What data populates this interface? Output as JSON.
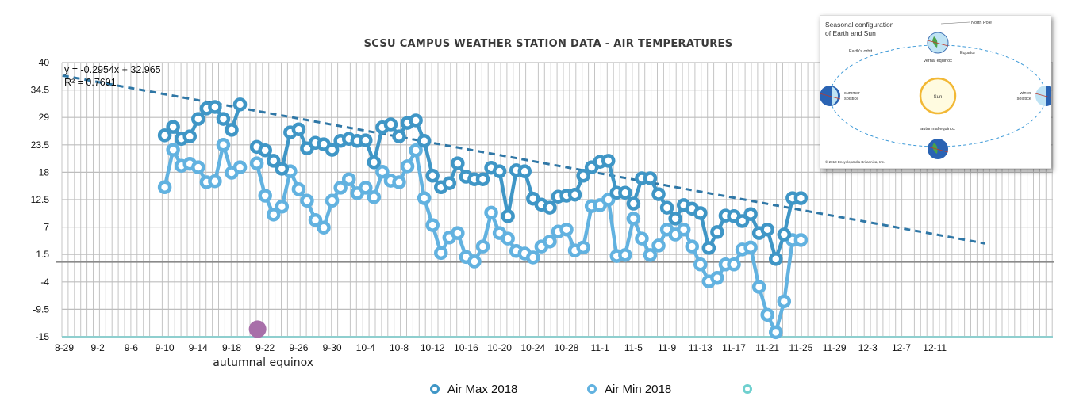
{
  "chart_data": {
    "type": "line",
    "title": "SCSU CAMPUS WEATHER STATION DATA - AIR TEMPERATURES",
    "xlabel": "",
    "ylabel": "",
    "ylim": [
      -15,
      40
    ],
    "yticks": [
      "40",
      "34.5",
      "29",
      "23.5",
      "18",
      "12.5",
      "7",
      "1.5",
      "-4",
      "-9.5",
      "-15"
    ],
    "ytick_values": [
      40,
      34.5,
      29,
      23.5,
      18,
      12.5,
      7,
      1.5,
      -4,
      -9.5,
      -15
    ],
    "x_start_date": "8-29",
    "x_range_days": [
      0,
      110
    ],
    "xticks": [
      "8-29",
      "9-2",
      "9-6",
      "9-10",
      "9-14",
      "9-18",
      "9-22",
      "9-26",
      "9-30",
      "10-4",
      "10-8",
      "10-12",
      "10-16",
      "10-20",
      "10-24",
      "10-28",
      "11-1",
      "11-5",
      "11-9",
      "11-13",
      "11-17",
      "11-21",
      "11-25",
      "11-29",
      "12-3",
      "12-7",
      "12-11"
    ],
    "xtick_days": [
      0,
      4,
      8,
      12,
      16,
      20,
      24,
      28,
      32,
      36,
      40,
      44,
      48,
      52,
      56,
      60,
      64,
      68,
      72,
      76,
      80,
      84,
      88,
      92,
      96,
      100,
      104
    ],
    "grid": true,
    "legend_position": "bottom",
    "series": [
      {
        "name": "Air Max 2018",
        "color": "#3f96c6",
        "days": [
          12,
          13,
          14,
          15,
          16,
          17,
          18,
          19,
          20,
          21,
          23,
          24,
          25,
          26,
          27,
          28,
          29,
          30,
          31,
          32,
          33,
          34,
          35,
          36,
          37,
          38,
          39,
          40,
          41,
          42,
          43,
          44,
          45,
          46,
          47,
          48,
          49,
          50,
          51,
          52,
          53,
          54,
          55,
          56,
          57,
          58,
          59,
          60,
          61,
          62,
          63,
          64,
          65,
          66,
          67,
          68,
          69,
          70,
          71,
          72,
          73,
          74,
          75,
          76,
          77,
          78,
          79,
          80,
          81,
          82,
          83,
          84,
          85,
          86,
          87,
          88
        ],
        "values": [
          25.4,
          27.1,
          24.7,
          25.2,
          28.7,
          30.8,
          31.1,
          28.7,
          26.5,
          31.6,
          23.1,
          22.4,
          20.3,
          18.7,
          26.0,
          26.6,
          22.8,
          23.9,
          23.6,
          22.5,
          24.3,
          24.7,
          24.3,
          24.4,
          20.0,
          27.0,
          27.6,
          25.2,
          27.9,
          28.4,
          24.3,
          17.3,
          15.0,
          15.8,
          19.8,
          17.1,
          16.6,
          16.6,
          18.9,
          18.2,
          9.2,
          18.4,
          18.2,
          12.7,
          11.5,
          10.9,
          13.1,
          13.3,
          13.5,
          17.3,
          19.0,
          20.1,
          20.3,
          13.9,
          13.9,
          11.7,
          16.8,
          16.8,
          13.6,
          10.9,
          8.7,
          11.4,
          10.7,
          9.8,
          2.8,
          6.0,
          9.3,
          9.2,
          8.2,
          9.6,
          5.8,
          6.5,
          0.6,
          5.5,
          12.8,
          12.8
        ]
      },
      {
        "name": "Air Min 2018",
        "color": "#62b2e0",
        "days": [
          12,
          13,
          14,
          15,
          16,
          17,
          18,
          19,
          20,
          21,
          23,
          24,
          25,
          26,
          27,
          28,
          29,
          30,
          31,
          32,
          33,
          34,
          35,
          36,
          37,
          38,
          39,
          40,
          41,
          42,
          43,
          44,
          45,
          46,
          47,
          48,
          49,
          50,
          51,
          52,
          53,
          54,
          55,
          56,
          57,
          58,
          59,
          60,
          61,
          62,
          63,
          64,
          65,
          66,
          67,
          68,
          69,
          70,
          71,
          72,
          73,
          74,
          75,
          76,
          77,
          78,
          79,
          80,
          81,
          82,
          83,
          84,
          85,
          86,
          87,
          88
        ],
        "values": [
          15.0,
          22.5,
          19.3,
          19.7,
          19.0,
          16.0,
          16.2,
          23.5,
          17.9,
          19.0,
          19.8,
          13.3,
          9.5,
          11.1,
          18.2,
          14.6,
          12.3,
          8.4,
          6.9,
          12.3,
          14.9,
          16.6,
          13.8,
          14.9,
          13.0,
          18.1,
          16.3,
          16.0,
          19.2,
          22.4,
          12.8,
          7.4,
          1.8,
          4.9,
          5.8,
          1.0,
          0.1,
          3.1,
          9.9,
          5.8,
          4.7,
          2.2,
          1.7,
          0.9,
          3.1,
          4.1,
          6.1,
          6.5,
          2.3,
          2.9,
          11.2,
          11.4,
          12.5,
          1.2,
          1.4,
          8.7,
          4.7,
          1.4,
          3.3,
          6.5,
          5.5,
          6.5,
          3.1,
          -0.5,
          -3.9,
          -3.2,
          -0.5,
          -0.5,
          2.5,
          2.9,
          -5.0,
          -10.6,
          -14.1,
          -7.9,
          4.4,
          4.4
        ]
      },
      {
        "name": "",
        "color": "#6fd0cf",
        "days": [],
        "values": []
      }
    ],
    "trendline": {
      "series": "Air Max 2018",
      "type": "linear",
      "slope": -0.2954,
      "intercept": 32.965,
      "equation_label": "y = -0.2954x + 32.965",
      "r2_label": "R² = 0.7691",
      "color": "#2f77a6"
    },
    "zero_line_value": 0,
    "annotations": [
      {
        "text": "autumnal equinox",
        "day": 23,
        "value": -13,
        "marker_color": "#a86fa9"
      }
    ]
  },
  "inset": {
    "title_line1": "Seasonal configuration",
    "title_line2": "of Earth and Sun",
    "north_pole": "North Pole",
    "equator": "Equator",
    "orbit": "Earth's orbit",
    "vernal": "vernal equinox",
    "summer_line1": "summer",
    "summer_line2": "solstice",
    "winter_line1": "winter",
    "winter_line2": "solstice",
    "sun": "Sun",
    "autumnal": "autumnal equinox",
    "copyright": "© 2010 Encyclopædia Britannica, Inc."
  }
}
